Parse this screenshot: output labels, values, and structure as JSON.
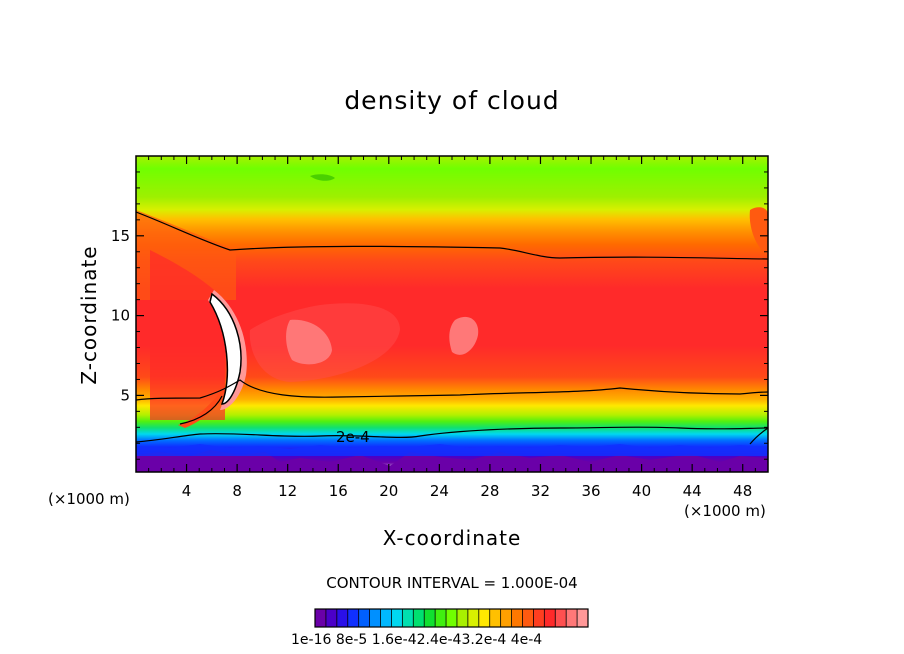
{
  "chart_data": {
    "type": "heatmap",
    "title": "density of cloud",
    "xlabel": "X-coordinate",
    "ylabel": "Z-coordinate",
    "x_unit": "(×1000 m)",
    "x_ticks": [
      4,
      8,
      12,
      16,
      20,
      24,
      28,
      32,
      36,
      40,
      44,
      48
    ],
    "y_ticks": [
      5,
      10,
      15
    ],
    "xlim": [
      0,
      50
    ],
    "ylim": [
      0.2,
      20
    ],
    "contour_label": "2e-4",
    "contour_interval_text": "CONTOUR INTERVAL = 1.000E-04",
    "colorbar_labels_text": "1e-16 8e-5 1.6e-42.4e-43.2e-4 4e-4",
    "colorbar_range": [
      1e-16,
      0.00044
    ],
    "colorbar_colors": [
      "#6a00a8",
      "#4b00c8",
      "#2a10e8",
      "#1030ff",
      "#0060ff",
      "#0090ff",
      "#00b8ff",
      "#00d8f0",
      "#00e0b0",
      "#00e070",
      "#10e030",
      "#40f010",
      "#70ff00",
      "#a8f000",
      "#d8f000",
      "#ffe800",
      "#ffc000",
      "#ffa000",
      "#ff7800",
      "#ff5a10",
      "#ff3e20",
      "#ff2a2a",
      "#ff5050",
      "#ff7878",
      "#ff9898"
    ],
    "regions_z_km": [
      {
        "z": 19.8,
        "value": 0.00014
      },
      {
        "z": 17.0,
        "value": 0.00016
      },
      {
        "z": 15.5,
        "value": 0.0002
      },
      {
        "z": 14.0,
        "value": 0.00025
      },
      {
        "z": 12.5,
        "value": 0.0003
      },
      {
        "z": 10.0,
        "value": 0.00034
      },
      {
        "z": 7.5,
        "value": 0.00036
      },
      {
        "z": 5.5,
        "value": 0.00032
      },
      {
        "z": 4.5,
        "value": 0.00028
      },
      {
        "z": 3.5,
        "value": 0.00023
      },
      {
        "z": 2.5,
        "value": 0.00016
      },
      {
        "z": 1.8,
        "value": 8e-05
      },
      {
        "z": 1.2,
        "value": 2e-05
      },
      {
        "z": 0.6,
        "value": 1e-16
      }
    ]
  }
}
